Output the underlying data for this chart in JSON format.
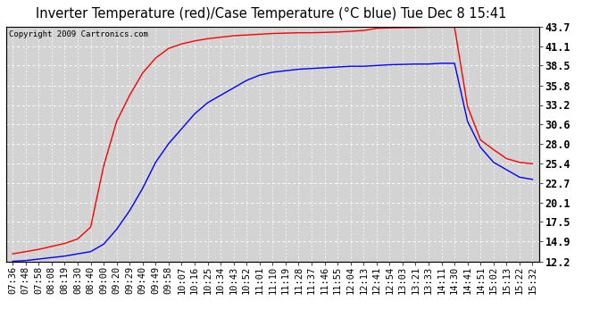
{
  "title": "Inverter Temperature (red)/Case Temperature (°C blue) Tue Dec 8 15:41",
  "copyright": "Copyright 2009 Cartronics.com",
  "x_labels": [
    "07:36",
    "07:48",
    "07:58",
    "08:08",
    "08:19",
    "08:30",
    "08:40",
    "09:00",
    "09:20",
    "09:29",
    "09:40",
    "09:49",
    "09:58",
    "10:07",
    "10:16",
    "10:25",
    "10:34",
    "10:43",
    "10:52",
    "11:01",
    "11:10",
    "11:19",
    "11:28",
    "11:37",
    "11:46",
    "11:55",
    "12:04",
    "12:13",
    "12:41",
    "12:54",
    "13:03",
    "13:21",
    "13:33",
    "14:11",
    "14:30",
    "14:41",
    "14:51",
    "15:02",
    "15:13",
    "15:22",
    "15:32"
  ],
  "y_ticks": [
    12.2,
    14.9,
    17.5,
    20.1,
    22.7,
    25.4,
    28.0,
    30.6,
    33.2,
    35.8,
    38.5,
    41.1,
    43.7
  ],
  "y_min": 12.2,
  "y_max": 43.7,
  "red_data": [
    13.2,
    13.5,
    13.8,
    14.2,
    14.6,
    15.2,
    16.8,
    25.0,
    31.0,
    34.5,
    37.5,
    39.5,
    40.8,
    41.4,
    41.8,
    42.1,
    42.3,
    42.5,
    42.6,
    42.7,
    42.8,
    42.85,
    42.9,
    42.9,
    42.95,
    43.0,
    43.1,
    43.2,
    43.5,
    43.55,
    43.58,
    43.6,
    43.65,
    43.65,
    43.65,
    33.0,
    28.5,
    27.2,
    26.0,
    25.5,
    25.3
  ],
  "blue_data": [
    12.2,
    12.3,
    12.5,
    12.7,
    12.9,
    13.2,
    13.5,
    14.5,
    16.5,
    19.0,
    22.0,
    25.5,
    28.0,
    30.0,
    32.0,
    33.5,
    34.5,
    35.5,
    36.5,
    37.2,
    37.6,
    37.8,
    38.0,
    38.1,
    38.2,
    38.3,
    38.4,
    38.4,
    38.5,
    38.6,
    38.65,
    38.7,
    38.7,
    38.8,
    38.8,
    31.0,
    27.5,
    25.5,
    24.5,
    23.5,
    23.2
  ],
  "outer_bg": "#ffffff",
  "plot_bg_color": "#d3d3d3",
  "grid_color": "#ffffff",
  "line_red": "#ff0000",
  "line_blue": "#0000ff",
  "title_fontsize": 10.5,
  "copyright_fontsize": 6.5,
  "tick_fontsize": 7.5,
  "y_tick_fontsize": 8.5
}
